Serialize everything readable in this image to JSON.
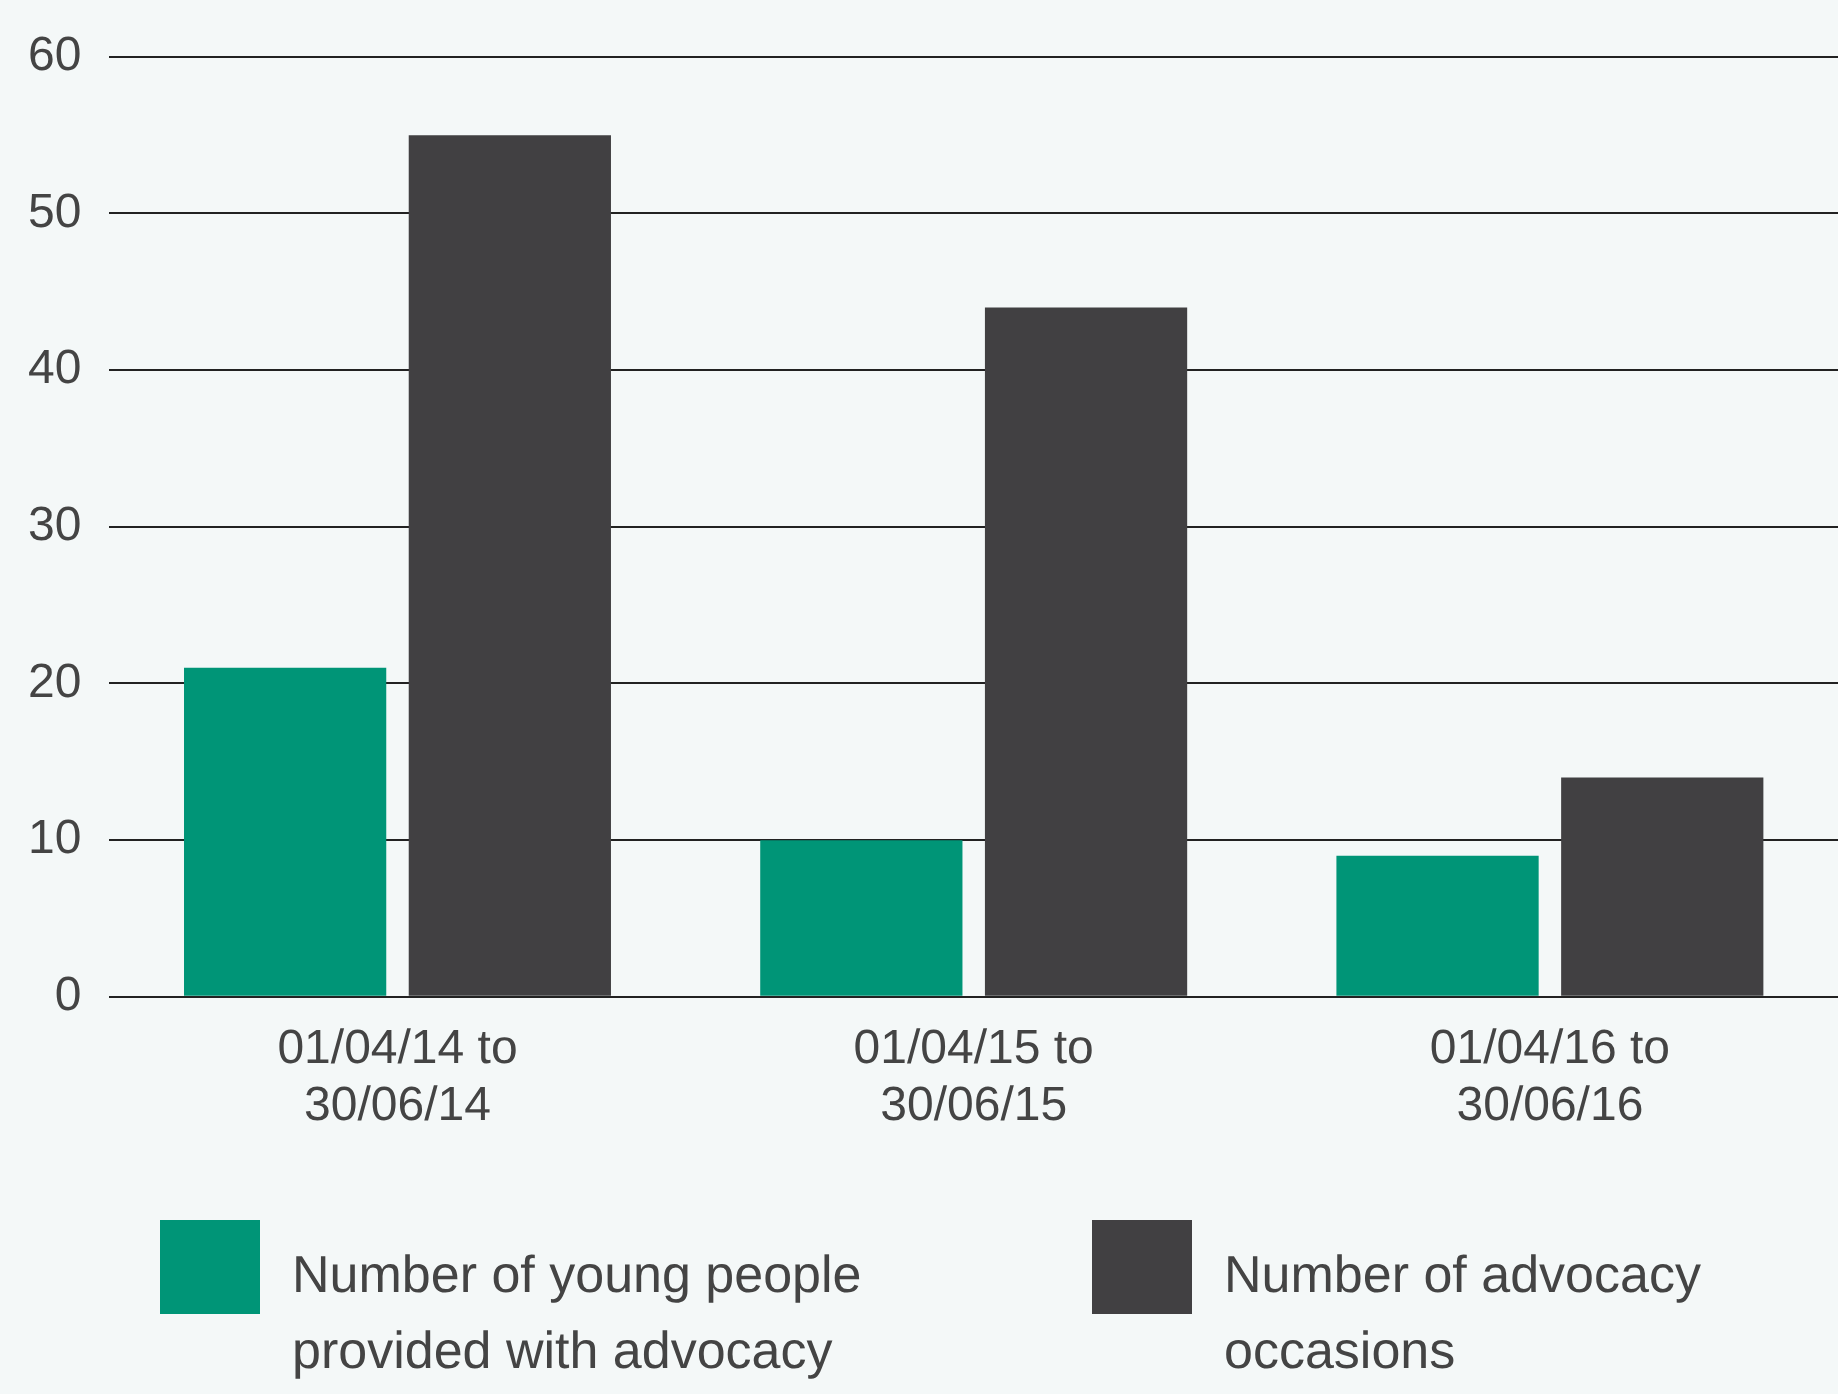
{
  "chart_data": {
    "type": "bar",
    "categories": [
      "01/04/14 to\n30/06/14",
      "01/04/15 to\n30/06/15",
      "01/04/16 to\n30/06/16"
    ],
    "series": [
      {
        "name": "Number of young people provided with advocacy",
        "color": "#009577",
        "values": [
          21,
          10,
          9
        ]
      },
      {
        "name": "Number of advocacy occasions",
        "color": "#414042",
        "values": [
          55,
          44,
          14
        ]
      }
    ],
    "ylim": [
      0,
      60
    ],
    "yticks": [
      0,
      10,
      20,
      30,
      40,
      50,
      60
    ],
    "grid": "y",
    "legend": "bottom"
  }
}
